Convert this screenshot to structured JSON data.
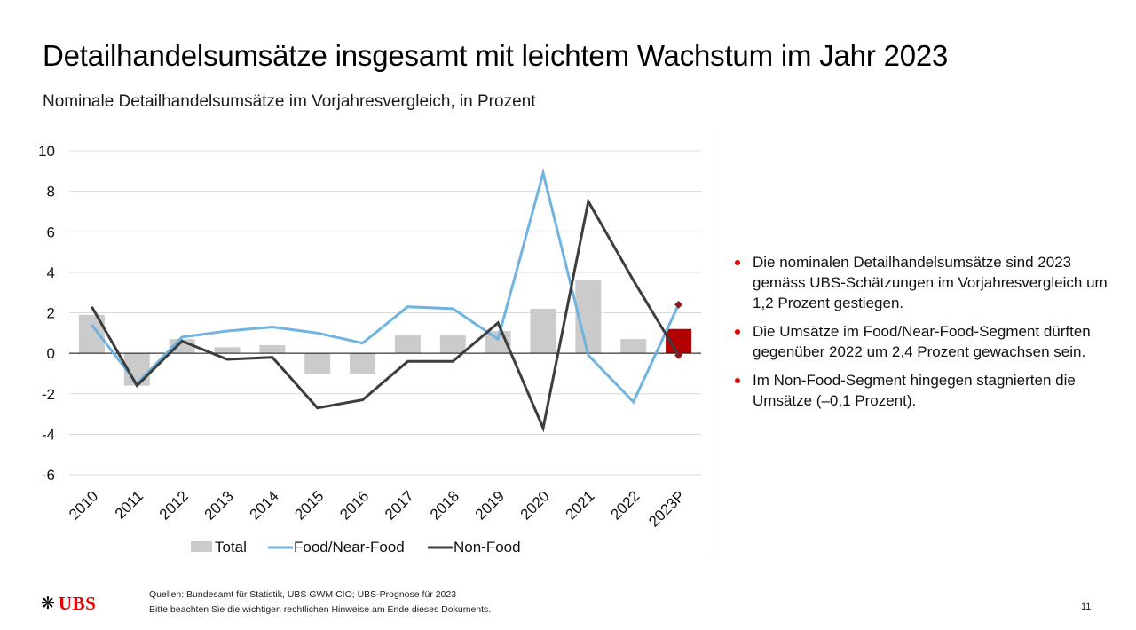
{
  "header": {
    "title": "Detailhandelsumsätze insgesamt mit leichtem Wachstum im Jahr 2023",
    "subtitle": "Nominale Detailhandelsumsätze im Vorjahresvergleich, in Prozent"
  },
  "chart_data": {
    "type": "bar",
    "categories": [
      "2010",
      "2011",
      "2012",
      "2013",
      "2014",
      "2015",
      "2016",
      "2017",
      "2018",
      "2019",
      "2020",
      "2021",
      "2022",
      "2023P"
    ],
    "ylim": [
      -6,
      10
    ],
    "yticks": [
      10,
      8,
      6,
      4,
      2,
      0,
      -2,
      -4,
      -6
    ],
    "grid": true,
    "legend_position": "bottom",
    "series": [
      {
        "name": "Total",
        "kind": "bar",
        "color": "#cbcbcb",
        "highlight_color": "#b40000",
        "values": [
          1.9,
          -1.6,
          0.7,
          0.3,
          0.4,
          -1.0,
          -1.0,
          0.9,
          0.9,
          1.1,
          2.2,
          3.6,
          0.7,
          1.2
        ]
      },
      {
        "name": "Food/Near-Food",
        "kind": "line",
        "color": "#6fb3e0",
        "values": [
          1.4,
          -1.5,
          0.8,
          1.1,
          1.3,
          1.0,
          0.5,
          2.3,
          2.2,
          0.7,
          8.9,
          -0.1,
          -2.4,
          2.4
        ]
      },
      {
        "name": "Non-Food",
        "kind": "line",
        "color": "#3d3d3d",
        "values": [
          2.3,
          -1.6,
          0.6,
          -0.3,
          -0.2,
          -2.7,
          -2.3,
          -0.4,
          -0.4,
          1.5,
          -3.7,
          7.5,
          3.6,
          -0.1
        ]
      }
    ]
  },
  "bullets": [
    "Die nominalen Detailhandelsumsätze sind 2023 gemäss UBS-Schätzungen im Vorjahresvergleich um 1,2 Prozent gestiegen.",
    "Die Umsätze im Food/Near-Food-Segment dürften gegenüber 2022 um 2,4 Prozent gewachsen sein.",
    "Im Non-Food-Segment hingegen stagnierten die Umsätze (–0,1 Prozent)."
  ],
  "footer": {
    "logo_text": "UBS",
    "logo_icon": "three-keys-icon",
    "sources": "Quellen: Bundesamt für Statistik, UBS GWM CIO; UBS-Prognose für 2023",
    "disclaimer": "Bitte beachten Sie die wichtigen rechtlichen Hinweise am Ende dieses Dokuments.",
    "page_number": "11"
  },
  "colors": {
    "accent": "#e60000"
  }
}
